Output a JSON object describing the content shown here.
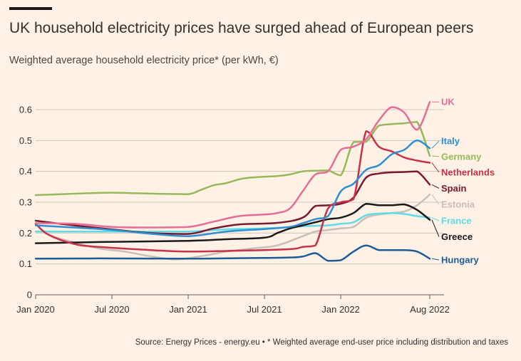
{
  "header": {
    "title": "UK household electricity prices have surged ahead of European peers",
    "subtitle": "Weighted average household electricity price* (per kWh, €)"
  },
  "footer": {
    "source": "Source: Energy Prices - energy.eu • * Weighted average end-user price including distribution and taxes"
  },
  "colors": {
    "background": "#FFF1E5",
    "grid": "#CEC6B9",
    "axis": "#66605C"
  },
  "chart_data": {
    "type": "line",
    "title": "UK household electricity prices have surged ahead of European peers",
    "subtitle": "Weighted average household electricity price* (per kWh, €)",
    "ylim": [
      0,
      0.6
    ],
    "yticks": [
      0,
      0.1,
      0.2,
      0.3,
      0.4,
      0.5,
      0.6
    ],
    "ytick_labels": [
      "0",
      "0.1",
      "0.2",
      "0.3",
      "0.4",
      "0.5",
      "0.6"
    ],
    "xlim": [
      "2020-01",
      "2022-08"
    ],
    "xticks": [
      "2020-01",
      "2020-07",
      "2021-01",
      "2021-07",
      "2022-01",
      "2022-08"
    ],
    "xtick_labels": [
      "Jan 2020",
      "Jul 2020",
      "Jan 2021",
      "Jul 2021",
      "Jan 2022",
      "Aug 2022"
    ],
    "grid": true,
    "legend": "direct-labels-right",
    "series": [
      {
        "name": "Germany",
        "color": "#96B95B",
        "width": 2.5,
        "points": [
          [
            "2020-01",
            0.323
          ],
          [
            "2020-03",
            0.326
          ],
          [
            "2020-05",
            0.329
          ],
          [
            "2020-07",
            0.331
          ],
          [
            "2020-09",
            0.329
          ],
          [
            "2020-11",
            0.327
          ],
          [
            "2021-01",
            0.326
          ],
          [
            "2021-02",
            0.34
          ],
          [
            "2021-03",
            0.355
          ],
          [
            "2021-04",
            0.362
          ],
          [
            "2021-05",
            0.374
          ],
          [
            "2021-06",
            0.38
          ],
          [
            "2021-08",
            0.385
          ],
          [
            "2021-09",
            0.39
          ],
          [
            "2021-10",
            0.4
          ],
          [
            "2021-11",
            0.402
          ],
          [
            "2021-12",
            0.403
          ],
          [
            "2022-01",
            0.387
          ],
          [
            "2022-02",
            0.495
          ],
          [
            "2022-03",
            0.496
          ],
          [
            "2022-04",
            0.548
          ],
          [
            "2022-05",
            0.553
          ],
          [
            "2022-06",
            0.556
          ],
          [
            "2022-07",
            0.56
          ],
          [
            "2022-08",
            0.45
          ]
        ]
      },
      {
        "name": "Estonia",
        "color": "#C7BFB8",
        "width": 2.5,
        "points": [
          [
            "2020-01",
            0.232
          ],
          [
            "2020-02",
            0.195
          ],
          [
            "2020-04",
            0.17
          ],
          [
            "2020-06",
            0.15
          ],
          [
            "2020-08",
            0.14
          ],
          [
            "2020-10",
            0.125
          ],
          [
            "2020-12",
            0.115
          ],
          [
            "2021-02",
            0.125
          ],
          [
            "2021-04",
            0.14
          ],
          [
            "2021-06",
            0.15
          ],
          [
            "2021-08",
            0.16
          ],
          [
            "2021-10",
            0.19
          ],
          [
            "2021-11",
            0.205
          ],
          [
            "2021-12",
            0.21
          ],
          [
            "2022-01",
            0.215
          ],
          [
            "2022-02",
            0.22
          ],
          [
            "2022-03",
            0.25
          ],
          [
            "2022-04",
            0.26
          ],
          [
            "2022-05",
            0.265
          ],
          [
            "2022-06",
            0.27
          ],
          [
            "2022-07",
            0.29
          ],
          [
            "2022-08",
            0.325
          ]
        ]
      },
      {
        "name": "France",
        "color": "#60DBE6",
        "width": 2.5,
        "points": [
          [
            "2020-01",
            0.205
          ],
          [
            "2020-04",
            0.205
          ],
          [
            "2020-07",
            0.205
          ],
          [
            "2020-10",
            0.205
          ],
          [
            "2021-01",
            0.205
          ],
          [
            "2021-04",
            0.212
          ],
          [
            "2021-07",
            0.215
          ],
          [
            "2021-10",
            0.222
          ],
          [
            "2021-12",
            0.225
          ],
          [
            "2022-01",
            0.23
          ],
          [
            "2022-02",
            0.235
          ],
          [
            "2022-03",
            0.258
          ],
          [
            "2022-04",
            0.263
          ],
          [
            "2022-05",
            0.265
          ],
          [
            "2022-06",
            0.262
          ],
          [
            "2022-07",
            0.255
          ],
          [
            "2022-08",
            0.25
          ]
        ]
      },
      {
        "name": "Hungary",
        "color": "#1D5B99",
        "width": 2.5,
        "points": [
          [
            "2020-01",
            0.117
          ],
          [
            "2020-06",
            0.118
          ],
          [
            "2021-01",
            0.117
          ],
          [
            "2021-06",
            0.119
          ],
          [
            "2021-09",
            0.121
          ],
          [
            "2021-10",
            0.124
          ],
          [
            "2021-11",
            0.135
          ],
          [
            "2021-12",
            0.11
          ],
          [
            "2022-01",
            0.112
          ],
          [
            "2022-02",
            0.14
          ],
          [
            "2022-03",
            0.16
          ],
          [
            "2022-04",
            0.145
          ],
          [
            "2022-05",
            0.145
          ],
          [
            "2022-06",
            0.145
          ],
          [
            "2022-07",
            0.14
          ],
          [
            "2022-08",
            0.117
          ]
        ]
      },
      {
        "name": "Greece",
        "color": "#1A1A1A",
        "width": 2.5,
        "points": [
          [
            "2020-01",
            0.167
          ],
          [
            "2020-06",
            0.171
          ],
          [
            "2021-01",
            0.175
          ],
          [
            "2021-04",
            0.18
          ],
          [
            "2021-07",
            0.185
          ],
          [
            "2021-08",
            0.2
          ],
          [
            "2021-09",
            0.215
          ],
          [
            "2021-10",
            0.225
          ],
          [
            "2021-11",
            0.235
          ],
          [
            "2021-12",
            0.245
          ],
          [
            "2022-01",
            0.25
          ],
          [
            "2022-02",
            0.265
          ],
          [
            "2022-03",
            0.295
          ],
          [
            "2022-04",
            0.29
          ],
          [
            "2022-05",
            0.29
          ],
          [
            "2022-06",
            0.293
          ],
          [
            "2022-07",
            0.275
          ],
          [
            "2022-08",
            0.243
          ]
        ]
      },
      {
        "name": "Spain",
        "color": "#7A1A31",
        "width": 2.5,
        "points": [
          [
            "2020-01",
            0.24
          ],
          [
            "2020-04",
            0.225
          ],
          [
            "2020-07",
            0.212
          ],
          [
            "2020-10",
            0.2
          ],
          [
            "2021-01",
            0.197
          ],
          [
            "2021-03",
            0.215
          ],
          [
            "2021-05",
            0.228
          ],
          [
            "2021-08",
            0.233
          ],
          [
            "2021-10",
            0.25
          ],
          [
            "2021-11",
            0.288
          ],
          [
            "2021-12",
            0.29
          ],
          [
            "2022-01",
            0.295
          ],
          [
            "2022-02",
            0.315
          ],
          [
            "2022-03",
            0.38
          ],
          [
            "2022-04",
            0.393
          ],
          [
            "2022-05",
            0.397
          ],
          [
            "2022-06",
            0.398
          ],
          [
            "2022-07",
            0.4
          ],
          [
            "2022-08",
            0.357
          ]
        ]
      },
      {
        "name": "Netherlands",
        "color": "#C9314A",
        "width": 2.5,
        "points": [
          [
            "2020-01",
            0.23
          ],
          [
            "2020-02",
            0.195
          ],
          [
            "2020-04",
            0.165
          ],
          [
            "2020-06",
            0.155
          ],
          [
            "2020-10",
            0.145
          ],
          [
            "2021-01",
            0.14
          ],
          [
            "2021-05",
            0.143
          ],
          [
            "2021-09",
            0.148
          ],
          [
            "2021-10",
            0.155
          ],
          [
            "2021-11",
            0.16
          ],
          [
            "2021-12",
            0.28
          ],
          [
            "2022-01",
            0.3
          ],
          [
            "2022-02",
            0.31
          ],
          [
            "2022-03",
            0.53
          ],
          [
            "2022-04",
            0.48
          ],
          [
            "2022-05",
            0.465
          ],
          [
            "2022-06",
            0.445
          ],
          [
            "2022-07",
            0.435
          ],
          [
            "2022-08",
            0.428
          ]
        ]
      },
      {
        "name": "Italy",
        "color": "#2F8FD0",
        "width": 2.5,
        "points": [
          [
            "2020-01",
            0.225
          ],
          [
            "2020-04",
            0.218
          ],
          [
            "2020-07",
            0.21
          ],
          [
            "2020-10",
            0.198
          ],
          [
            "2021-01",
            0.19
          ],
          [
            "2021-04",
            0.205
          ],
          [
            "2021-07",
            0.213
          ],
          [
            "2021-09",
            0.22
          ],
          [
            "2021-10",
            0.232
          ],
          [
            "2021-11",
            0.245
          ],
          [
            "2021-12",
            0.255
          ],
          [
            "2022-01",
            0.335
          ],
          [
            "2022-02",
            0.36
          ],
          [
            "2022-03",
            0.405
          ],
          [
            "2022-04",
            0.42
          ],
          [
            "2022-05",
            0.455
          ],
          [
            "2022-06",
            0.47
          ],
          [
            "2022-07",
            0.5
          ],
          [
            "2022-08",
            0.475
          ]
        ]
      },
      {
        "name": "UK",
        "color": "#E56E96",
        "width": 2.5,
        "points": [
          [
            "2020-01",
            0.232
          ],
          [
            "2020-04",
            0.23
          ],
          [
            "2020-07",
            0.22
          ],
          [
            "2020-10",
            0.218
          ],
          [
            "2021-01",
            0.22
          ],
          [
            "2021-03",
            0.237
          ],
          [
            "2021-05",
            0.255
          ],
          [
            "2021-07",
            0.26
          ],
          [
            "2021-08",
            0.265
          ],
          [
            "2021-09",
            0.28
          ],
          [
            "2021-10",
            0.335
          ],
          [
            "2021-11",
            0.39
          ],
          [
            "2021-12",
            0.4
          ],
          [
            "2022-01",
            0.47
          ],
          [
            "2022-02",
            0.48
          ],
          [
            "2022-03",
            0.505
          ],
          [
            "2022-04",
            0.565
          ],
          [
            "2022-05",
            0.608
          ],
          [
            "2022-06",
            0.59
          ],
          [
            "2022-07",
            0.535
          ],
          [
            "2022-08",
            0.625
          ]
        ]
      }
    ],
    "labels": [
      {
        "series": "UK",
        "text": "UK",
        "color": "#E56E96",
        "label_y": 0.625
      },
      {
        "series": "Italy",
        "text": "Italy",
        "color": "#2F8FD0",
        "label_y": 0.498
      },
      {
        "series": "Germany",
        "text": "Germany",
        "color": "#96B95B",
        "label_y": 0.448
      },
      {
        "series": "Netherlands",
        "text": "Netherlands",
        "color": "#C9314A",
        "label_y": 0.397
      },
      {
        "series": "Spain",
        "text": "Spain",
        "color": "#7A1A31",
        "label_y": 0.345
      },
      {
        "series": "Estonia",
        "text": "Estonia",
        "color": "#C7BFB8",
        "label_y": 0.293
      },
      {
        "series": "France",
        "text": "France",
        "color": "#60DBE6",
        "label_y": 0.24
      },
      {
        "series": "Greece",
        "text": "Greece",
        "color": "#1A1A1A",
        "label_y": 0.188
      },
      {
        "series": "Hungary",
        "text": "Hungary",
        "color": "#1D5B99",
        "label_y": 0.113
      }
    ]
  }
}
